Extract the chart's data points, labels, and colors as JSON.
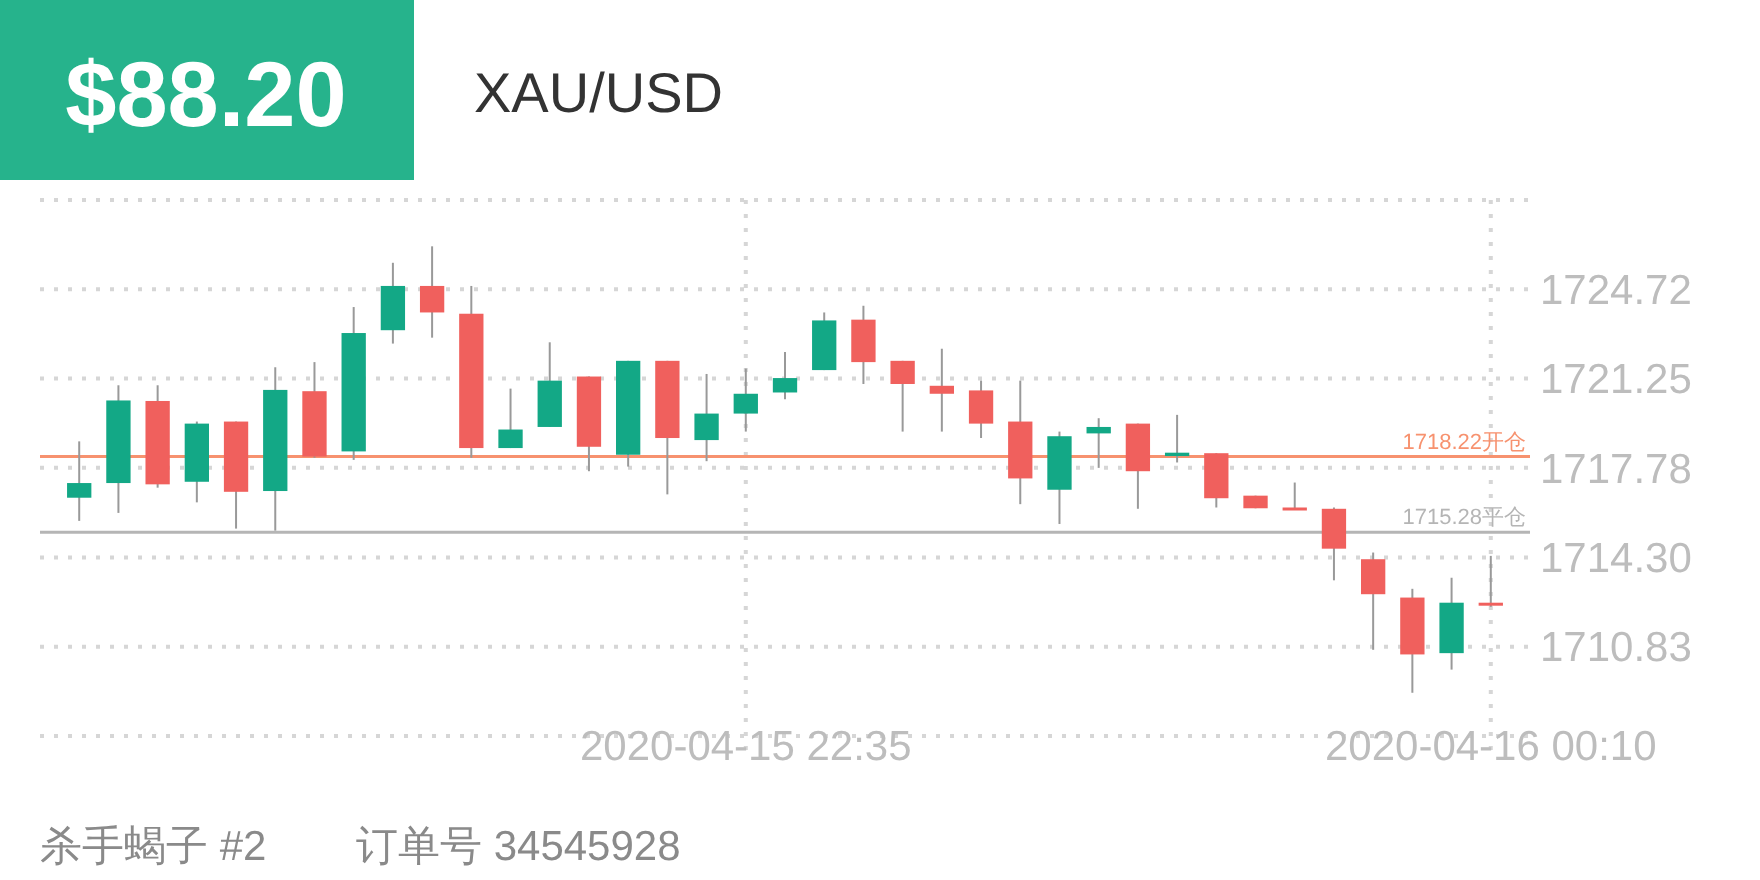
{
  "chart_data": {
    "type": "candlestick",
    "title": "$88.20",
    "subtitle": "XAU/USD",
    "x": [
      "2020-04-15T21:10",
      "2020-04-15T21:15",
      "2020-04-15T21:20",
      "2020-04-15T21:25",
      "2020-04-15T21:30",
      "2020-04-15T21:35",
      "2020-04-15T21:40",
      "2020-04-15T21:45",
      "2020-04-15T21:50",
      "2020-04-15T21:55",
      "2020-04-15T22:00",
      "2020-04-15T22:05",
      "2020-04-15T22:10",
      "2020-04-15T22:15",
      "2020-04-15T22:20",
      "2020-04-15T22:25",
      "2020-04-15T22:30",
      "2020-04-15T22:35",
      "2020-04-15T22:40",
      "2020-04-15T22:45",
      "2020-04-15T22:50",
      "2020-04-15T22:55",
      "2020-04-15T23:00",
      "2020-04-15T23:05",
      "2020-04-15T23:10",
      "2020-04-15T23:15",
      "2020-04-15T23:20",
      "2020-04-15T23:25",
      "2020-04-15T23:30",
      "2020-04-15T23:35",
      "2020-04-15T23:40",
      "2020-04-15T23:45",
      "2020-04-15T23:50",
      "2020-04-15T23:55",
      "2020-04-16T00:00",
      "2020-04-16T00:05",
      "2020-04-16T00:10"
    ],
    "ohlc": [
      [
        1716.62,
        1718.81,
        1715.72,
        1717.19
      ],
      [
        1717.19,
        1720.99,
        1716.03,
        1720.4
      ],
      [
        1720.38,
        1720.99,
        1717.01,
        1717.14
      ],
      [
        1717.24,
        1719.58,
        1716.44,
        1719.5
      ],
      [
        1719.58,
        1719.58,
        1715.42,
        1716.85
      ],
      [
        1716.88,
        1721.69,
        1715.34,
        1720.81
      ],
      [
        1720.76,
        1721.89,
        1718.17,
        1718.22
      ],
      [
        1718.42,
        1724.03,
        1718.09,
        1723.02
      ],
      [
        1723.13,
        1725.75,
        1722.61,
        1724.85
      ],
      [
        1724.85,
        1726.39,
        1722.84,
        1723.82
      ],
      [
        1723.77,
        1724.85,
        1718.17,
        1718.55
      ],
      [
        1718.55,
        1720.86,
        1718.55,
        1719.27
      ],
      [
        1719.37,
        1722.66,
        1719.37,
        1721.17
      ],
      [
        1721.33,
        1721.33,
        1717.65,
        1718.6
      ],
      [
        1718.29,
        1721.94,
        1717.83,
        1721.94
      ],
      [
        1721.94,
        1721.94,
        1716.75,
        1718.94
      ],
      [
        1718.86,
        1721.43,
        1718.04,
        1719.89
      ],
      [
        1719.89,
        1721.64,
        1719.19,
        1720.66
      ],
      [
        1720.71,
        1722.28,
        1720.45,
        1721.27
      ],
      [
        1721.58,
        1723.82,
        1721.58,
        1723.51
      ],
      [
        1723.54,
        1724.08,
        1721.04,
        1721.89
      ],
      [
        1721.94,
        1721.94,
        1719.19,
        1721.04
      ],
      [
        1720.97,
        1722.41,
        1719.19,
        1720.66
      ],
      [
        1720.79,
        1721.17,
        1718.94,
        1719.5
      ],
      [
        1719.58,
        1721.17,
        1716.37,
        1717.37
      ],
      [
        1716.93,
        1719.19,
        1715.6,
        1719.01
      ],
      [
        1719.12,
        1719.71,
        1717.78,
        1719.37
      ],
      [
        1719.5,
        1719.5,
        1716.19,
        1717.65
      ],
      [
        1718.24,
        1719.84,
        1717.99,
        1718.37
      ],
      [
        1718.35,
        1718.35,
        1716.24,
        1716.6
      ],
      [
        1716.7,
        1716.7,
        1716.21,
        1716.21
      ],
      [
        1716.24,
        1717.21,
        1716.22,
        1716.22
      ],
      [
        1716.19,
        1716.24,
        1713.41,
        1714.64
      ],
      [
        1714.23,
        1714.49,
        1710.71,
        1712.87
      ],
      [
        1712.74,
        1713.08,
        1709.04,
        1710.53
      ],
      [
        1710.58,
        1713.51,
        1709.94,
        1712.54
      ],
      [
        1712.54,
        1714.36,
        1712.38,
        1712.52
      ]
    ],
    "xlim": [
      "2020-04-15T21:05",
      "2020-04-16T00:15"
    ],
    "xticks": [
      {
        "value": "2020-04-15T22:35",
        "label": "2020-04-15 22:35"
      },
      {
        "value": "2020-04-16T00:10",
        "label": "2020-04-16 00:10"
      }
    ],
    "ylim": [
      1707.36,
      1728.19
    ],
    "yticks": [
      {
        "value": 1707.36,
        "label": null
      },
      {
        "value": 1710.83,
        "label": "1710.83"
      },
      {
        "value": 1714.3,
        "label": "1714.30"
      },
      {
        "value": 1717.78,
        "label": "1717.78"
      },
      {
        "value": 1721.25,
        "label": "1721.25"
      },
      {
        "value": 1724.72,
        "label": "1724.72"
      },
      {
        "value": 1728.19,
        "label": null
      }
    ],
    "grid": true,
    "ref_lines": [
      {
        "axis": "y",
        "value": 1718.22,
        "label": "1718.22开仓",
        "color": "#f7926f"
      },
      {
        "axis": "y",
        "value": 1715.28,
        "label": "1715.28平仓",
        "color": "#b5b5b5"
      }
    ],
    "annotations": [
      "杀手蝎子 #2",
      "订单号 34545928"
    ]
  }
}
